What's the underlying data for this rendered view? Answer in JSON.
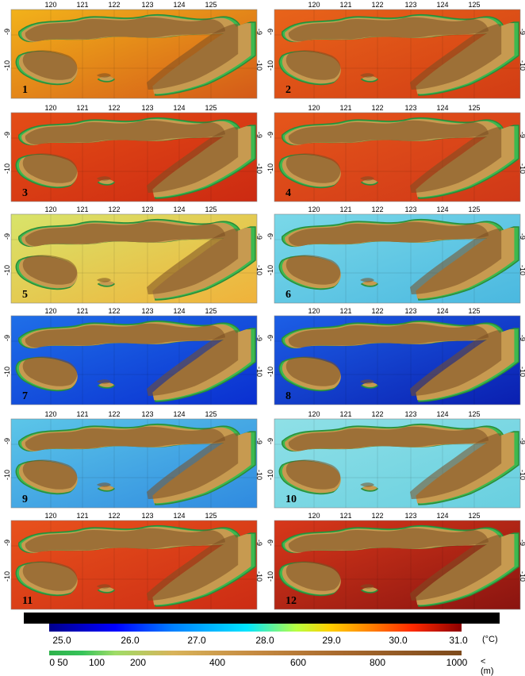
{
  "panels": [
    {
      "label": "1"
    },
    {
      "label": "2"
    },
    {
      "label": "3"
    },
    {
      "label": "4"
    },
    {
      "label": "5"
    },
    {
      "label": "6"
    },
    {
      "label": "7"
    },
    {
      "label": "8"
    },
    {
      "label": "9"
    },
    {
      "label": "10"
    },
    {
      "label": "11"
    },
    {
      "label": "12"
    }
  ],
  "axis": {
    "longitudes": [
      "120",
      "121",
      "122",
      "123",
      "124",
      "125"
    ],
    "latitudes": [
      "-9",
      "-10"
    ]
  },
  "legend": {
    "temperature_ticks": [
      "25.0",
      "26.0",
      "27.0",
      "28.0",
      "29.0",
      "30.0",
      "31.0"
    ],
    "temperature_unit": "(°C)",
    "elevation_ticks": [
      "0 50",
      "100",
      "200",
      "400",
      "600",
      "800",
      "1000"
    ],
    "elevation_unit": "< (m)"
  },
  "colors": {
    "panel_sea": [
      "#f2b21a",
      "#e8641a",
      "#e44d16",
      "#e5561a",
      "#d8e46a",
      "#7ad8e8",
      "#1f6fe8",
      "#1c5fe6",
      "#5cc6e8",
      "#8fe0e6",
      "#e8521c",
      "#d8381a"
    ],
    "panel_sea_edge": [
      "#d45a18",
      "#d23c14",
      "#cc2a12",
      "#d03818",
      "#f0b23a",
      "#4ab8e0",
      "#0a2fd0",
      "#0a1fb0",
      "#2f8ae0",
      "#68cfe0",
      "#cc2c14",
      "#8a1410"
    ]
  }
}
